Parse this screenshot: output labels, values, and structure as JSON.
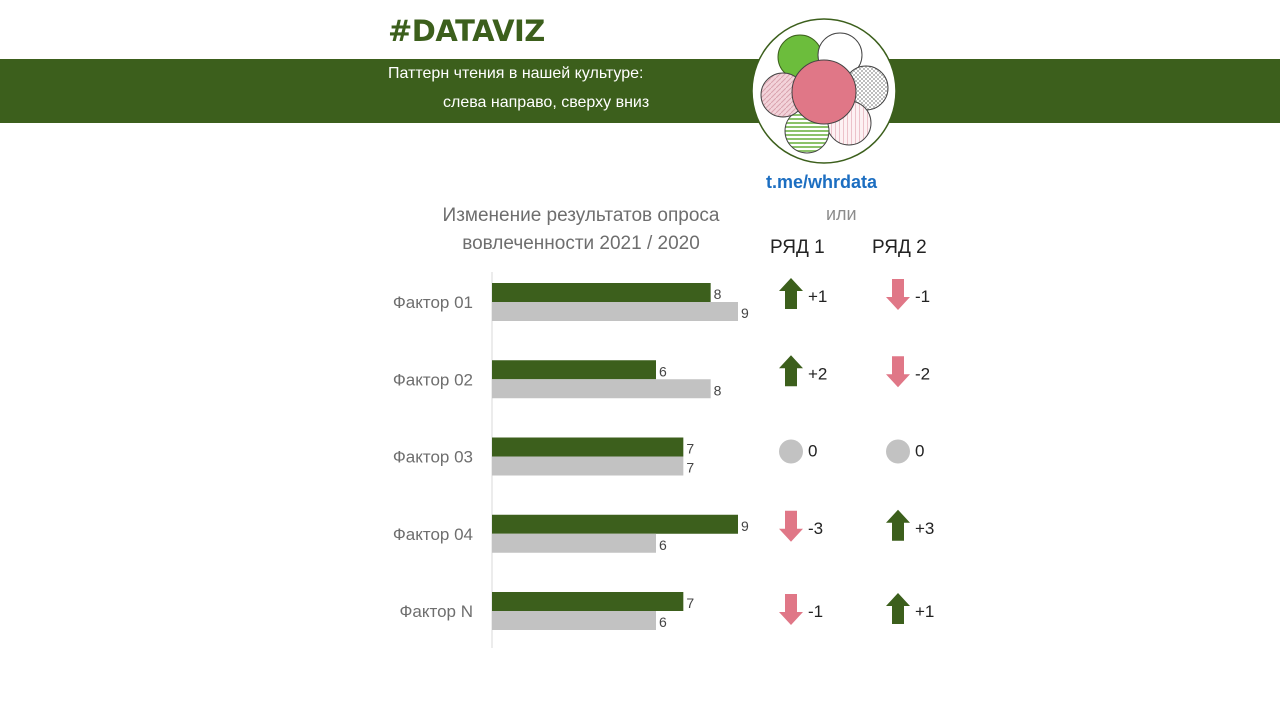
{
  "header": {
    "brand": "#DATAVIZ",
    "subtitle_line1": "Паттерн чтения в нашей культуре:",
    "subtitle_line2": "слева направо, сверху вниз",
    "link": "t.me/whrdata",
    "or_label": "или"
  },
  "columns": {
    "row1_label": "РЯД 1",
    "row2_label": "РЯД 2"
  },
  "colors": {
    "banner": "#3c5f1c",
    "series_2021": "#3c5f1c",
    "series_2020": "#c2c2c2",
    "arrow_up": "#3c5f1c",
    "arrow_down": "#e07787",
    "neutral": "#c2c2c2",
    "link": "#1c6ec1"
  },
  "chart_data": {
    "type": "bar",
    "orientation": "horizontal",
    "title_line1": "Изменение результатов опроса",
    "title_line2": "вовлеченности 2021 / 2020",
    "categories": [
      "Фактор 01",
      "Фактор 02",
      "Фактор 03",
      "Фактор 04",
      "Фактор N"
    ],
    "series": [
      {
        "values": [
          8,
          6,
          7,
          9,
          7
        ],
        "color": "#3c5f1c"
      },
      {
        "values": [
          9,
          8,
          7,
          6,
          6
        ],
        "color": "#c2c2c2"
      }
    ],
    "xlim": [
      0,
      9
    ],
    "grid": false,
    "row1_deltas": [
      {
        "direction": "up",
        "label": "+1"
      },
      {
        "direction": "up",
        "label": "+2"
      },
      {
        "direction": "neutral",
        "label": "0"
      },
      {
        "direction": "down",
        "label": "-3"
      },
      {
        "direction": "down",
        "label": "-1"
      }
    ],
    "row2_deltas": [
      {
        "direction": "down",
        "label": "-1"
      },
      {
        "direction": "down",
        "label": "-2"
      },
      {
        "direction": "neutral",
        "label": "0"
      },
      {
        "direction": "up",
        "label": "+3"
      },
      {
        "direction": "up",
        "label": "+1"
      }
    ]
  }
}
